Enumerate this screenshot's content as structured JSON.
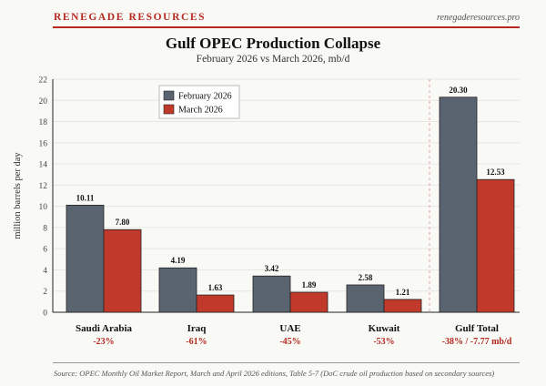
{
  "header": {
    "brand": "RENEGADE RESOURCES",
    "site": "renegaderesources.pro"
  },
  "colors": {
    "accent": "#b52a20",
    "feb": "#5a6470",
    "mar": "#c0392b",
    "change": "#b52a20"
  },
  "footer": {
    "source": "Source: OPEC Monthly Oil Market Report, March and April 2026 editions, Table 5-7 (DoC crude oil production based on secondary sources)"
  },
  "chart_data": {
    "type": "bar",
    "title": "Gulf OPEC Production Collapse",
    "subtitle": "February 2026 vs March 2026, mb/d",
    "xlabel": "",
    "ylabel": "million barrels per day",
    "ylim": [
      0,
      22
    ],
    "yticks": [
      0,
      2,
      4,
      6,
      8,
      10,
      12,
      14,
      16,
      18,
      20,
      22
    ],
    "grid": true,
    "legend_position": "top-left",
    "categories": [
      "Saudi Arabia",
      "Iraq",
      "UAE",
      "Kuwait",
      "Gulf Total"
    ],
    "changes": [
      "-23%",
      "-61%",
      "-45%",
      "-53%",
      "-38% / -7.77 mb/d"
    ],
    "series": [
      {
        "name": "February 2026",
        "values": [
          10.11,
          4.19,
          3.42,
          2.58,
          20.3
        ],
        "labels": [
          "10.11",
          "4.19",
          "3.42",
          "2.58",
          "20.30"
        ]
      },
      {
        "name": "March 2026",
        "values": [
          7.8,
          1.63,
          1.89,
          1.21,
          12.53
        ],
        "labels": [
          "7.80",
          "1.63",
          "1.89",
          "1.21",
          "12.53"
        ]
      }
    ]
  }
}
